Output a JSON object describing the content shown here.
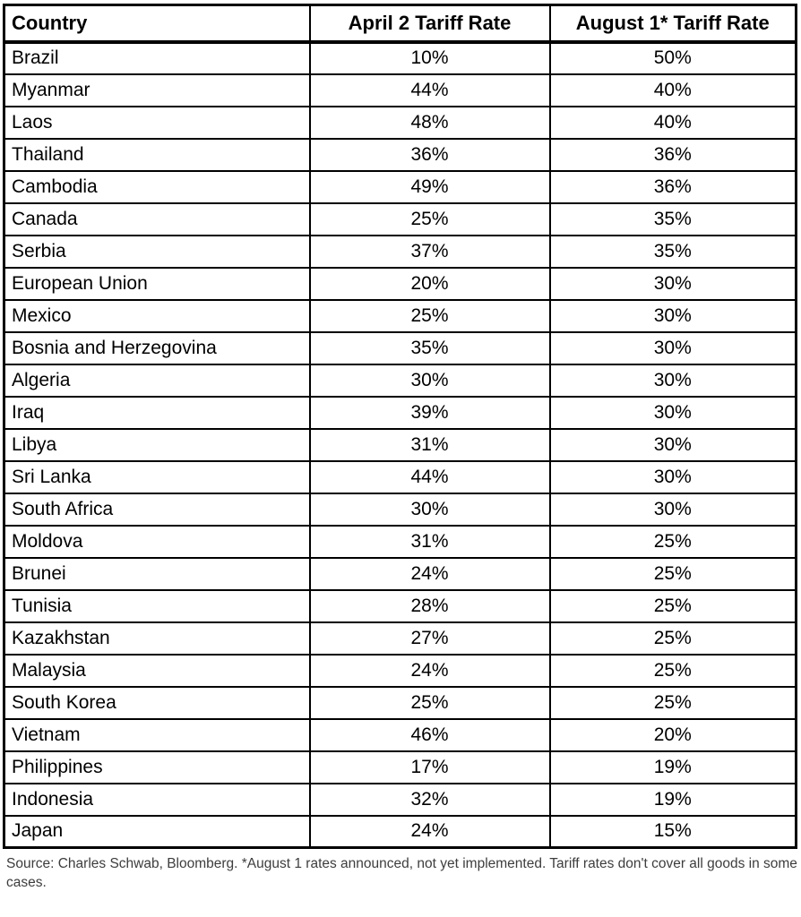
{
  "chart_data": {
    "type": "table",
    "columns": [
      "Country",
      "April 2 Tariff Rate",
      "August 1* Tariff Rate"
    ],
    "rows": [
      [
        "Brazil",
        "10%",
        "50%"
      ],
      [
        "Myanmar",
        "44%",
        "40%"
      ],
      [
        "Laos",
        "48%",
        "40%"
      ],
      [
        "Thailand",
        "36%",
        "36%"
      ],
      [
        "Cambodia",
        "49%",
        "36%"
      ],
      [
        "Canada",
        "25%",
        "35%"
      ],
      [
        "Serbia",
        "37%",
        "35%"
      ],
      [
        "European Union",
        "20%",
        "30%"
      ],
      [
        "Mexico",
        "25%",
        "30%"
      ],
      [
        "Bosnia and Herzegovina",
        "35%",
        "30%"
      ],
      [
        "Algeria",
        "30%",
        "30%"
      ],
      [
        "Iraq",
        "39%",
        "30%"
      ],
      [
        "Libya",
        "31%",
        "30%"
      ],
      [
        "Sri Lanka",
        "44%",
        "30%"
      ],
      [
        "South Africa",
        "30%",
        "30%"
      ],
      [
        "Moldova",
        "31%",
        "25%"
      ],
      [
        "Brunei",
        "24%",
        "25%"
      ],
      [
        "Tunisia",
        "28%",
        "25%"
      ],
      [
        "Kazakhstan",
        "27%",
        "25%"
      ],
      [
        "Malaysia",
        "24%",
        "25%"
      ],
      [
        "South Korea",
        "25%",
        "25%"
      ],
      [
        "Vietnam",
        "46%",
        "20%"
      ],
      [
        "Philippines",
        "17%",
        "19%"
      ],
      [
        "Indonesia",
        "32%",
        "19%"
      ],
      [
        "Japan",
        "24%",
        "15%"
      ]
    ]
  },
  "footnote": {
    "text": "Source: Charles Schwab, Bloomberg. *August 1 rates announced, not yet implemented. Tariff rates don't cover all goods in some cases."
  },
  "colors": {
    "border": "#000000",
    "header_text": "#000000",
    "cell_text": "#000000",
    "footnote_text": "#3d3d3d"
  }
}
